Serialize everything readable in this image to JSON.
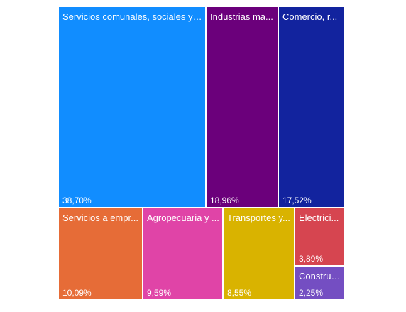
{
  "chart_data": {
    "type": "treemap",
    "value_unit": "%",
    "items": [
      {
        "category": "Servicios comunales, sociales y personales",
        "label": "Servicios comunales, sociales y ...",
        "value": 38.7,
        "value_label": "38,70%",
        "color": "#118dff"
      },
      {
        "category": "Industrias manufactureras",
        "label": "Industrias ma...",
        "value": 18.96,
        "value_label": "18,96%",
        "color": "#6b007b"
      },
      {
        "category": "Comercio, restaurantes y hoteles",
        "label": "Comercio, r...",
        "value": 17.52,
        "value_label": "17,52%",
        "color": "#12239e"
      },
      {
        "category": "Servicios a empresas",
        "label": "Servicios a empr...",
        "value": 10.09,
        "value_label": "10,09%",
        "color": "#e66c37"
      },
      {
        "category": "Agropecuaria y pesca",
        "label": "Agropecuaria y ...",
        "value": 9.59,
        "value_label": "9,59%",
        "color": "#e044a7"
      },
      {
        "category": "Transportes y comunicaciones",
        "label": "Transportes y...",
        "value": 8.55,
        "value_label": "8,55%",
        "color": "#d9b300"
      },
      {
        "category": "Electricidad, gas y agua",
        "label": "Electrici...",
        "value": 3.89,
        "value_label": "3,89%",
        "color": "#d64550"
      },
      {
        "category": "Construcción",
        "label": "Construc...",
        "value": 2.25,
        "value_label": "2,25%",
        "color": "#744ec2"
      }
    ]
  }
}
